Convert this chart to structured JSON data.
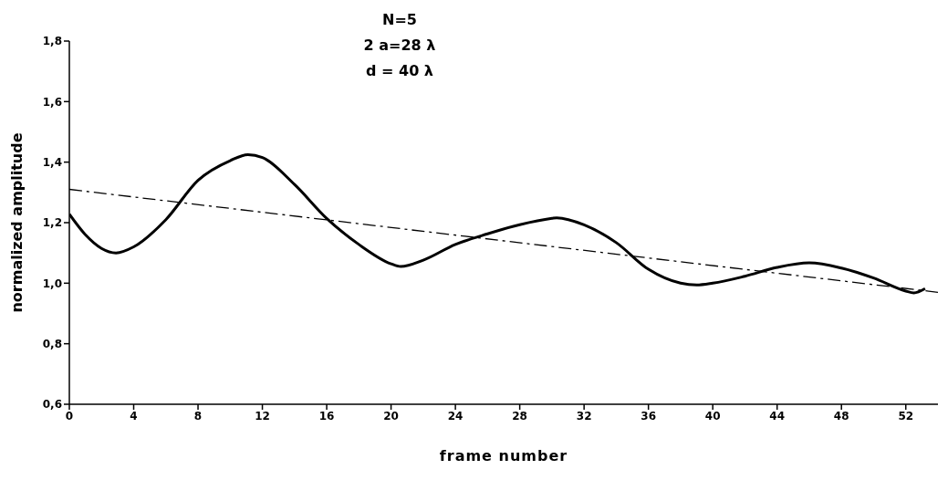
{
  "chart_data": {
    "type": "line",
    "xlabel": "frame number",
    "ylabel": "normalized amplitude",
    "annotations": [
      "N=5",
      "2 a=28 λ",
      "d = 40 λ"
    ],
    "xlim": [
      0,
      54
    ],
    "xticks": [
      0,
      4,
      8,
      12,
      16,
      20,
      24,
      28,
      32,
      36,
      40,
      44,
      48,
      52
    ],
    "ylim": [
      0.6,
      1.8
    ],
    "yticks": [
      {
        "value": 0.6,
        "label": "0,6"
      },
      {
        "value": 0.8,
        "label": "0,8"
      },
      {
        "value": 1.0,
        "label": "1,0"
      },
      {
        "value": 1.2,
        "label": "1,2"
      },
      {
        "value": 1.4,
        "label": "1,4"
      },
      {
        "value": 1.6,
        "label": "1,6"
      },
      {
        "value": 1.8,
        "label": "1,8"
      }
    ],
    "marker": "none",
    "series": [
      {
        "color": "#000000",
        "line_style": "solid",
        "x": [
          0,
          1,
          2,
          2.9,
          4,
          6,
          8,
          10,
          11.1,
          12,
          14,
          16,
          18,
          20,
          20.6,
          22,
          24,
          26,
          28,
          30,
          30.3,
          32,
          34,
          36,
          38,
          39,
          40,
          42,
          44,
          46,
          48,
          50,
          52,
          52.5,
          53.2
        ],
        "values": [
          1.228,
          1.16,
          1.115,
          1.1,
          1.12,
          1.21,
          1.34,
          1.405,
          1.425,
          1.415,
          1.326,
          1.214,
          1.128,
          1.064,
          1.055,
          1.076,
          1.128,
          1.163,
          1.193,
          1.214,
          1.216,
          1.193,
          1.134,
          1.046,
          1.0,
          0.994,
          1.0,
          1.023,
          1.052,
          1.067,
          1.05,
          1.017,
          0.974,
          0.968,
          0.982
        ]
      },
      {
        "type": "line",
        "color": "#000000",
        "line_style": "dashed",
        "x": [
          0,
          54
        ],
        "values": [
          1.31,
          0.97
        ]
      }
    ]
  }
}
